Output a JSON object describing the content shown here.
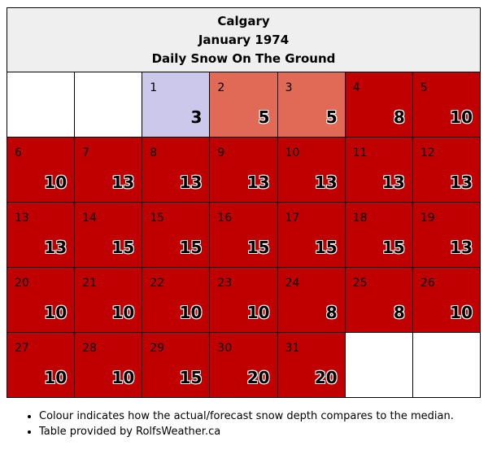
{
  "header": {
    "title": "Calgary",
    "subtitle": "January 1974",
    "metric": "Daily Snow On The Ground"
  },
  "chart_data": {
    "type": "table",
    "weekday_start_offset": 2,
    "days": [
      {
        "day": "1",
        "value": 3,
        "category": "below"
      },
      {
        "day": "2",
        "value": 5,
        "category": "near"
      },
      {
        "day": "3",
        "value": 5,
        "category": "near"
      },
      {
        "day": "4",
        "value": 8,
        "category": "above"
      },
      {
        "day": "5",
        "value": 10,
        "category": "above"
      },
      {
        "day": "6",
        "value": 10,
        "category": "above"
      },
      {
        "day": "7",
        "value": 13,
        "category": "above"
      },
      {
        "day": "8",
        "value": 13,
        "category": "above"
      },
      {
        "day": "9",
        "value": 13,
        "category": "above"
      },
      {
        "day": "10",
        "value": 13,
        "category": "above"
      },
      {
        "day": "11",
        "value": 13,
        "category": "above"
      },
      {
        "day": "12",
        "value": 13,
        "category": "above"
      },
      {
        "day": "13",
        "value": 13,
        "category": "above"
      },
      {
        "day": "14",
        "value": 15,
        "category": "above"
      },
      {
        "day": "15",
        "value": 15,
        "category": "above"
      },
      {
        "day": "16",
        "value": 15,
        "category": "above"
      },
      {
        "day": "17",
        "value": 15,
        "category": "above"
      },
      {
        "day": "18",
        "value": 15,
        "category": "above"
      },
      {
        "day": "19",
        "value": 13,
        "category": "above"
      },
      {
        "day": "20",
        "value": 10,
        "category": "above"
      },
      {
        "day": "21",
        "value": 10,
        "category": "above"
      },
      {
        "day": "22",
        "value": 10,
        "category": "above"
      },
      {
        "day": "23",
        "value": 10,
        "category": "above"
      },
      {
        "day": "24",
        "value": 8,
        "category": "above"
      },
      {
        "day": "25",
        "value": 8,
        "category": "above"
      },
      {
        "day": "26",
        "value": 10,
        "category": "above"
      },
      {
        "day": "27",
        "value": 10,
        "category": "above"
      },
      {
        "day": "28",
        "value": 10,
        "category": "above"
      },
      {
        "day": "29",
        "value": 15,
        "category": "above"
      },
      {
        "day": "30",
        "value": 20,
        "category": "above"
      },
      {
        "day": "31",
        "value": 20,
        "category": "above"
      }
    ]
  },
  "colors": {
    "below": "#ccc8ec",
    "near": "#e06a56",
    "above": "#c00000",
    "empty": "#ffffff"
  },
  "notes": [
    "Colour indicates how the actual/forecast snow depth compares to the median.",
    "Table provided by RolfsWeather.ca"
  ]
}
